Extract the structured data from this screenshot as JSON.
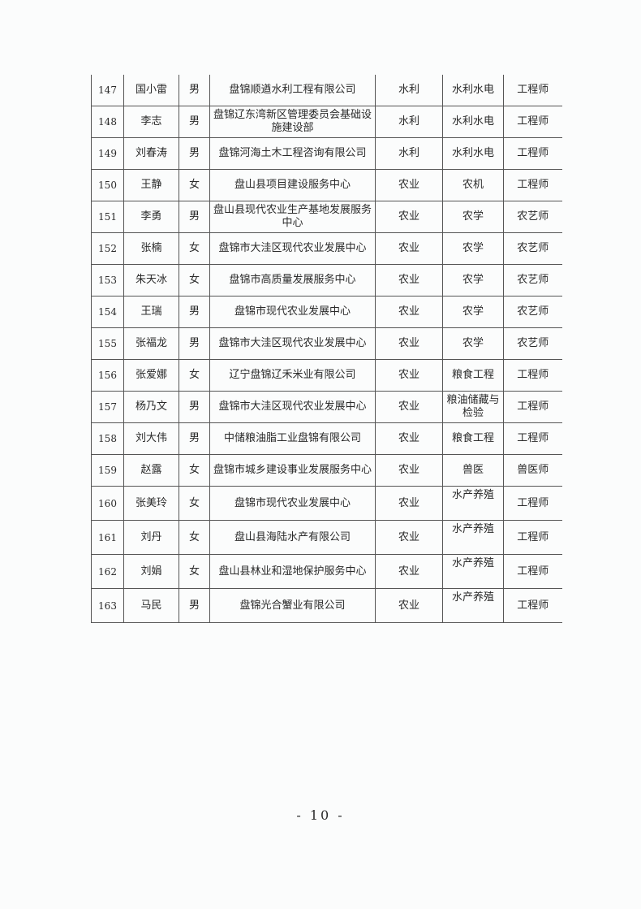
{
  "table": {
    "rows": [
      [
        "147",
        "国小雷",
        "男",
        "盘锦顺遒水利工程有限公司",
        "水利",
        "水利水电",
        "工程师"
      ],
      [
        "148",
        "李志",
        "男",
        "盘锦辽东湾新区管理委员会基础设施建设部",
        "水利",
        "水利水电",
        "工程师"
      ],
      [
        "149",
        "刘春涛",
        "男",
        "盘锦河海土木工程咨询有限公司",
        "水利",
        "水利水电",
        "工程师"
      ],
      [
        "150",
        "王静",
        "女",
        "盘山县项目建设服务中心",
        "农业",
        "农机",
        "工程师"
      ],
      [
        "151",
        "李勇",
        "男",
        "盘山县现代农业生产基地发展服务中心",
        "农业",
        "农学",
        "农艺师"
      ],
      [
        "152",
        "张楠",
        "女",
        "盘锦市大洼区现代农业发展中心",
        "农业",
        "农学",
        "农艺师"
      ],
      [
        "153",
        "朱天冰",
        "女",
        "盘锦市高质量发展服务中心",
        "农业",
        "农学",
        "农艺师"
      ],
      [
        "154",
        "王瑞",
        "男",
        "盘锦市现代农业发展中心",
        "农业",
        "农学",
        "农艺师"
      ],
      [
        "155",
        "张福龙",
        "男",
        "盘锦市大洼区现代农业发展中心",
        "农业",
        "农学",
        "农艺师"
      ],
      [
        "156",
        "张爱娜",
        "女",
        "辽宁盘锦辽禾米业有限公司",
        "农业",
        "粮食工程",
        "工程师"
      ],
      [
        "157",
        "杨乃文",
        "男",
        "盘锦市大洼区现代农业发展中心",
        "农业",
        "粮油储藏与检验",
        "工程师"
      ],
      [
        "158",
        "刘大伟",
        "男",
        "中储粮油脂工业盘锦有限公司",
        "农业",
        "粮食工程",
        "工程师"
      ],
      [
        "159",
        "赵露",
        "女",
        "盘锦市城乡建设事业发展服务中心",
        "农业",
        "兽医",
        "兽医师"
      ],
      [
        "160",
        "张美玲",
        "女",
        "盘锦市现代农业发展中心",
        "农业",
        "水产养殖",
        "工程师"
      ],
      [
        "161",
        "刘丹",
        "女",
        "盘山县海陆水产有限公司",
        "农业",
        "水产养殖",
        "工程师"
      ],
      [
        "162",
        "刘娟",
        "女",
        "盘山县林业和湿地保护服务中心",
        "农业",
        "水产养殖",
        "工程师"
      ],
      [
        "163",
        "马民",
        "男",
        "盘锦光合蟹业有限公司",
        "农业",
        "水产养殖",
        "工程师"
      ]
    ]
  },
  "footer": {
    "page_number": "- 10 -"
  }
}
